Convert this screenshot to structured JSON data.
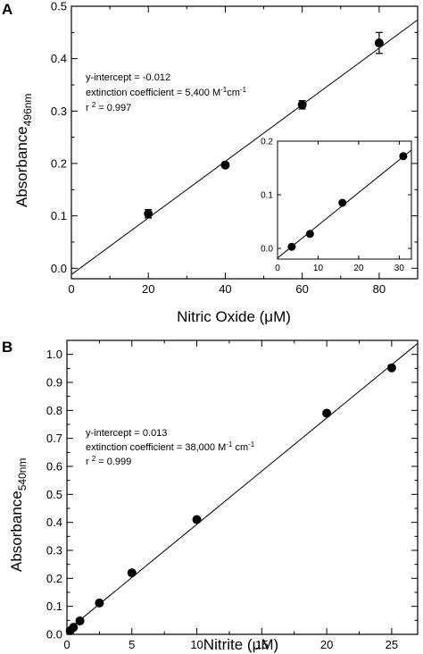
{
  "panels": [
    {
      "letter": "A",
      "xlabel": "Nitric Oxide (μM)",
      "ylabel_main": "Absorbance",
      "ylabel_sub": "496nm",
      "annotations": [
        {
          "pre": "y-intercept = -0.012"
        },
        {
          "pre": "extinction coefficient = 5,400 M",
          "sup1": "-1",
          "mid": "cm",
          "sup2": "-1"
        },
        {
          "pre": "r ",
          "sup1": "2",
          "mid": " = 0.997"
        }
      ]
    },
    {
      "letter": "B",
      "xlabel": "Nitrite (μM)",
      "ylabel_main": "Absorbance",
      "ylabel_sub": "540nm",
      "annotations": [
        {
          "pre": "y-intercept = 0.013"
        },
        {
          "pre": "extinction coefficient = 38,000 M",
          "sup1": "-1",
          "mid": " cm",
          "sup2": "-1"
        },
        {
          "pre": "r ",
          "sup1": "2",
          "mid": " = 0.999"
        }
      ]
    }
  ],
  "chart_data": [
    {
      "id": "A",
      "type": "scatter",
      "xlabel": "Nitric Oxide (μM)",
      "ylabel": "Absorbance496nm",
      "xlim": [
        0,
        90
      ],
      "ylim": [
        -0.02,
        0.5
      ],
      "xticks": [
        0,
        20,
        40,
        60,
        80
      ],
      "yticks": [
        0.0,
        0.1,
        0.2,
        0.3,
        0.4,
        0.5
      ],
      "x": [
        20,
        40,
        60,
        80
      ],
      "y": [
        0.104,
        0.197,
        0.312,
        0.43
      ],
      "yerr": [
        0.008,
        0.005,
        0.008,
        0.02
      ],
      "fit": {
        "slope": 0.0054,
        "intercept": -0.012
      },
      "inset": {
        "type": "scatter",
        "xlim": [
          0,
          33
        ],
        "ylim": [
          -0.02,
          0.2
        ],
        "xticks": [
          0,
          10,
          20,
          30
        ],
        "yticks": [
          0.0,
          0.1,
          0.2
        ],
        "x": [
          3.5,
          8,
          16,
          31
        ],
        "y": [
          0.003,
          0.027,
          0.085,
          0.172
        ],
        "fit": {
          "slope": 0.0061,
          "intercept": -0.018
        }
      }
    },
    {
      "id": "B",
      "type": "scatter",
      "xlabel": "Nitrite (μM)",
      "ylabel": "Absorbance540nm",
      "xlim": [
        0,
        27
      ],
      "ylim": [
        0,
        1.05
      ],
      "xticks": [
        0,
        5,
        10,
        15,
        20,
        25
      ],
      "yticks": [
        0.0,
        0.1,
        0.2,
        0.3,
        0.4,
        0.5,
        0.6,
        0.7,
        0.8,
        0.9,
        1.0
      ],
      "x": [
        0.25,
        0.5,
        1,
        2.5,
        5,
        10,
        20,
        25
      ],
      "y": [
        0.013,
        0.025,
        0.048,
        0.112,
        0.22,
        0.41,
        0.79,
        0.952
      ],
      "fit": {
        "slope": 0.038,
        "intercept": 0.013
      }
    }
  ]
}
